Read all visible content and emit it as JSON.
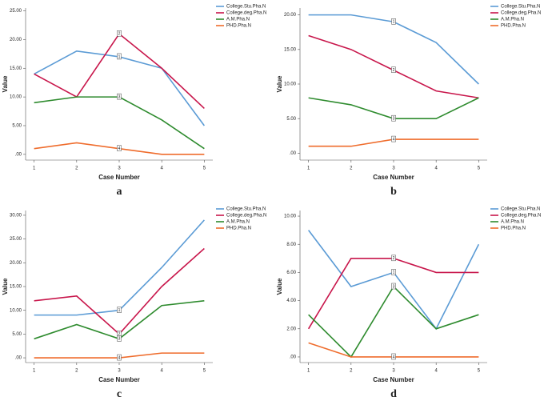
{
  "chart_data": [
    {
      "type": "line",
      "panel": "a",
      "xlabel": "Case Number",
      "ylabel": "Value",
      "x": [
        1,
        2,
        3,
        4,
        5
      ],
      "xlim": [
        0.8,
        5.2
      ],
      "xticks": [
        1,
        2,
        3,
        4,
        5
      ],
      "ylim": [
        -1,
        25.5
      ],
      "yticks": [
        {
          "value": 0,
          "label": ".00"
        },
        {
          "value": 5,
          "label": "5.00"
        },
        {
          "value": 10,
          "label": "10.00"
        },
        {
          "value": 15,
          "label": "15.00"
        },
        {
          "value": 20,
          "label": "20.00"
        },
        {
          "value": 25,
          "label": "25.00"
        }
      ],
      "series": [
        {
          "name": "College.Stu.Pha.N",
          "tag": "1",
          "color": "#5b9bd5",
          "values": [
            14,
            18,
            17,
            15,
            5
          ]
        },
        {
          "name": "College.deg.Pha.N",
          "tag": "2",
          "color": "#c8164b",
          "values": [
            14,
            10,
            21,
            15,
            8
          ]
        },
        {
          "name": "A.M.Pha.N",
          "tag": "3",
          "color": "#2e8b2e",
          "values": [
            9,
            10,
            10,
            6,
            1
          ]
        },
        {
          "name": "PHD.Pha.N",
          "tag": "4",
          "color": "#ef6c2c",
          "values": [
            1,
            2,
            1,
            0,
            0
          ]
        }
      ]
    },
    {
      "type": "line",
      "panel": "b",
      "xlabel": "Case Number",
      "ylabel": "Value",
      "x": [
        1,
        2,
        3,
        4,
        5
      ],
      "xlim": [
        0.8,
        5.2
      ],
      "xticks": [
        1,
        2,
        3,
        4,
        5
      ],
      "ylim": [
        -1,
        21
      ],
      "yticks": [
        {
          "value": 0,
          "label": ".00"
        },
        {
          "value": 5,
          "label": "5.00"
        },
        {
          "value": 10,
          "label": "10.00"
        },
        {
          "value": 15,
          "label": "15.00"
        },
        {
          "value": 20,
          "label": "20.00"
        }
      ],
      "series": [
        {
          "name": "College.Stu.Pha.N",
          "tag": "1",
          "color": "#5b9bd5",
          "values": [
            20,
            20,
            19,
            16,
            10
          ]
        },
        {
          "name": "College.deg.Pha.N",
          "tag": "2",
          "color": "#c8164b",
          "values": [
            17,
            15,
            12,
            9,
            8
          ]
        },
        {
          "name": "A.M.Pha.N",
          "tag": "3",
          "color": "#2e8b2e",
          "values": [
            8,
            7,
            5,
            5,
            8
          ]
        },
        {
          "name": "PHD.Pha.N",
          "tag": "4",
          "color": "#ef6c2c",
          "values": [
            1,
            1,
            2,
            2,
            2
          ]
        }
      ]
    },
    {
      "type": "line",
      "panel": "c",
      "xlabel": "Case Number",
      "ylabel": "Value",
      "x": [
        1,
        2,
        3,
        4,
        5
      ],
      "xlim": [
        0.8,
        5.2
      ],
      "xticks": [
        1,
        2,
        3,
        4,
        5
      ],
      "ylim": [
        -1,
        31
      ],
      "yticks": [
        {
          "value": 0,
          "label": ".00"
        },
        {
          "value": 5,
          "label": "5.00"
        },
        {
          "value": 10,
          "label": "10.00"
        },
        {
          "value": 15,
          "label": "15.00"
        },
        {
          "value": 20,
          "label": "20.00"
        },
        {
          "value": 25,
          "label": "25.00"
        },
        {
          "value": 30,
          "label": "30.00"
        }
      ],
      "series": [
        {
          "name": "College.Stu.Pha.N",
          "tag": "1",
          "color": "#5b9bd5",
          "values": [
            9,
            9,
            10,
            19,
            29
          ]
        },
        {
          "name": "College.deg.Pha.N",
          "tag": "2",
          "color": "#c8164b",
          "values": [
            12,
            13,
            5,
            15,
            23
          ]
        },
        {
          "name": "A.M.Pha.N",
          "tag": "3",
          "color": "#2e8b2e",
          "values": [
            4,
            7,
            4,
            11,
            12
          ]
        },
        {
          "name": "PHD.Pha.N",
          "tag": "4",
          "color": "#ef6c2c",
          "values": [
            0,
            0,
            0,
            1,
            1
          ]
        }
      ]
    },
    {
      "type": "line",
      "panel": "d",
      "xlabel": "Case Number",
      "ylabel": "Value",
      "x": [
        1,
        2,
        3,
        4,
        5
      ],
      "xlim": [
        0.8,
        5.2
      ],
      "xticks": [
        1,
        2,
        3,
        4,
        5
      ],
      "ylim": [
        -0.4,
        10.4
      ],
      "yticks": [
        {
          "value": 0,
          "label": ".00"
        },
        {
          "value": 2,
          "label": "2.00"
        },
        {
          "value": 4,
          "label": "4.00"
        },
        {
          "value": 6,
          "label": "6.00"
        },
        {
          "value": 8,
          "label": "8.00"
        },
        {
          "value": 10,
          "label": "10.00"
        }
      ],
      "series": [
        {
          "name": "College.Stu.Pha.N",
          "tag": "1",
          "color": "#5b9bd5",
          "values": [
            9,
            5,
            6,
            2,
            8
          ]
        },
        {
          "name": "College.deg.Pha.N",
          "tag": "2",
          "color": "#c8164b",
          "values": [
            2,
            7,
            7,
            6,
            6
          ]
        },
        {
          "name": "A.M.Pha.N",
          "tag": "3",
          "color": "#2e8b2e",
          "values": [
            3,
            0,
            5,
            2,
            3
          ]
        },
        {
          "name": "PHD.Pha.N",
          "tag": "4",
          "color": "#ef6c2c",
          "values": [
            1,
            0,
            0,
            0,
            0
          ]
        }
      ]
    }
  ]
}
